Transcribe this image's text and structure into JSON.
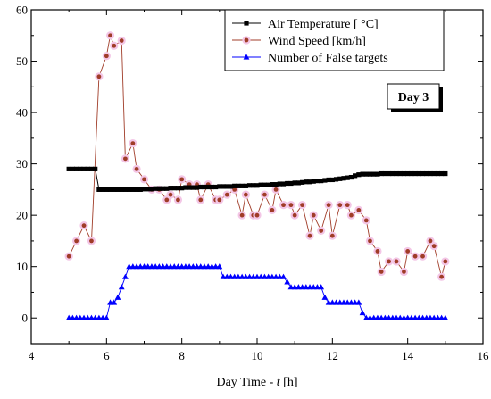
{
  "chart_data": {
    "type": "line",
    "xlabel_main": "Day Time - ",
    "xlabel_var": "t",
    "xlabel_unit": " [h]",
    "xlim": [
      4,
      16
    ],
    "ylim": [
      -5,
      60
    ],
    "x_ticks": [
      "4",
      "6",
      "8",
      "10",
      "12",
      "14",
      "16"
    ],
    "y_ticks": [
      "0",
      "10",
      "20",
      "30",
      "40",
      "50",
      "60"
    ],
    "annotation": "Day 3",
    "legend_position": "top-right",
    "series": [
      {
        "name": "Air Temperature [ °C]",
        "color": "#000000",
        "marker": "square",
        "points": [
          [
            5.0,
            29
          ],
          [
            5.1,
            29
          ],
          [
            5.2,
            29
          ],
          [
            5.3,
            29
          ],
          [
            5.4,
            29
          ],
          [
            5.5,
            29
          ],
          [
            5.6,
            29
          ],
          [
            5.7,
            29
          ],
          [
            5.8,
            25
          ],
          [
            5.9,
            25
          ],
          [
            6.0,
            25
          ],
          [
            6.1,
            25
          ],
          [
            6.2,
            25
          ],
          [
            6.3,
            25
          ],
          [
            6.4,
            25
          ],
          [
            6.5,
            25
          ],
          [
            6.6,
            25
          ],
          [
            6.7,
            25
          ],
          [
            6.8,
            25
          ],
          [
            6.9,
            25
          ],
          [
            7.0,
            25.1
          ],
          [
            7.1,
            25.1
          ],
          [
            7.2,
            25.1
          ],
          [
            7.3,
            25.2
          ],
          [
            7.4,
            25.2
          ],
          [
            7.5,
            25.2
          ],
          [
            7.6,
            25.2
          ],
          [
            7.7,
            25.3
          ],
          [
            7.8,
            25.3
          ],
          [
            7.9,
            25.3
          ],
          [
            8.0,
            25.3
          ],
          [
            8.1,
            25.4
          ],
          [
            8.2,
            25.4
          ],
          [
            8.3,
            25.4
          ],
          [
            8.4,
            25.4
          ],
          [
            8.5,
            25.5
          ],
          [
            8.6,
            25.5
          ],
          [
            8.7,
            25.5
          ],
          [
            8.8,
            25.5
          ],
          [
            8.9,
            25.5
          ],
          [
            9.0,
            25.6
          ],
          [
            9.1,
            25.6
          ],
          [
            9.2,
            25.6
          ],
          [
            9.3,
            25.6
          ],
          [
            9.4,
            25.7
          ],
          [
            9.5,
            25.7
          ],
          [
            9.6,
            25.7
          ],
          [
            9.7,
            25.7
          ],
          [
            9.8,
            25.8
          ],
          [
            9.9,
            25.8
          ],
          [
            10.0,
            25.8
          ],
          [
            10.1,
            25.9
          ],
          [
            10.2,
            25.9
          ],
          [
            10.3,
            25.9
          ],
          [
            10.4,
            26.0
          ],
          [
            10.5,
            26.0
          ],
          [
            10.6,
            26.1
          ],
          [
            10.7,
            26.1
          ],
          [
            10.8,
            26.2
          ],
          [
            10.9,
            26.2
          ],
          [
            11.0,
            26.3
          ],
          [
            11.1,
            26.3
          ],
          [
            11.2,
            26.4
          ],
          [
            11.3,
            26.5
          ],
          [
            11.4,
            26.5
          ],
          [
            11.5,
            26.6
          ],
          [
            11.6,
            26.7
          ],
          [
            11.7,
            26.7
          ],
          [
            11.8,
            26.8
          ],
          [
            11.9,
            26.9
          ],
          [
            12.0,
            26.9
          ],
          [
            12.1,
            27.0
          ],
          [
            12.2,
            27.1
          ],
          [
            12.3,
            27.2
          ],
          [
            12.4,
            27.3
          ],
          [
            12.5,
            27.4
          ],
          [
            12.6,
            27.7
          ],
          [
            12.7,
            27.9
          ],
          [
            12.8,
            28.0
          ],
          [
            12.9,
            28.0
          ],
          [
            13.0,
            28.0
          ],
          [
            13.1,
            28.0
          ],
          [
            13.2,
            28.0
          ],
          [
            13.3,
            28.1
          ],
          [
            13.4,
            28.1
          ],
          [
            13.5,
            28.1
          ],
          [
            13.6,
            28.1
          ],
          [
            13.7,
            28.1
          ],
          [
            13.8,
            28.1
          ],
          [
            13.9,
            28.1
          ],
          [
            14.0,
            28.1
          ],
          [
            14.1,
            28.1
          ],
          [
            14.2,
            28.1
          ],
          [
            14.3,
            28.1
          ],
          [
            14.4,
            28.1
          ],
          [
            14.5,
            28.1
          ],
          [
            14.6,
            28.1
          ],
          [
            14.7,
            28.1
          ],
          [
            14.8,
            28.1
          ],
          [
            14.9,
            28.1
          ],
          [
            15.0,
            28.1
          ]
        ]
      },
      {
        "name": "Wind Speed [km/h]",
        "color": "#a03c28",
        "marker": "circle",
        "points": [
          [
            5.0,
            12
          ],
          [
            5.2,
            15
          ],
          [
            5.4,
            18
          ],
          [
            5.6,
            15
          ],
          [
            5.8,
            47
          ],
          [
            6.0,
            51
          ],
          [
            6.1,
            55
          ],
          [
            6.2,
            53
          ],
          [
            6.4,
            54
          ],
          [
            6.5,
            31
          ],
          [
            6.7,
            34
          ],
          [
            6.8,
            29
          ],
          [
            7.0,
            27
          ],
          [
            7.2,
            25
          ],
          [
            7.4,
            25
          ],
          [
            7.6,
            23
          ],
          [
            7.7,
            24
          ],
          [
            7.9,
            23
          ],
          [
            8.0,
            27
          ],
          [
            8.2,
            26
          ],
          [
            8.4,
            26
          ],
          [
            8.5,
            23
          ],
          [
            8.7,
            26
          ],
          [
            8.9,
            23
          ],
          [
            9.0,
            23
          ],
          [
            9.2,
            24
          ],
          [
            9.4,
            25
          ],
          [
            9.6,
            20
          ],
          [
            9.7,
            24
          ],
          [
            9.9,
            20
          ],
          [
            10.0,
            20
          ],
          [
            10.2,
            24
          ],
          [
            10.4,
            21
          ],
          [
            10.5,
            25
          ],
          [
            10.7,
            22
          ],
          [
            10.9,
            22
          ],
          [
            11.0,
            20
          ],
          [
            11.2,
            22
          ],
          [
            11.4,
            16
          ],
          [
            11.5,
            20
          ],
          [
            11.7,
            17
          ],
          [
            11.9,
            22
          ],
          [
            12.0,
            16
          ],
          [
            12.2,
            22
          ],
          [
            12.4,
            22
          ],
          [
            12.5,
            20
          ],
          [
            12.7,
            21
          ],
          [
            12.9,
            19
          ],
          [
            13.0,
            15
          ],
          [
            13.2,
            13
          ],
          [
            13.3,
            9
          ],
          [
            13.5,
            11
          ],
          [
            13.7,
            11
          ],
          [
            13.9,
            9
          ],
          [
            14.0,
            13
          ],
          [
            14.2,
            12
          ],
          [
            14.4,
            12
          ],
          [
            14.6,
            15
          ],
          [
            14.7,
            14
          ],
          [
            14.9,
            8
          ],
          [
            15.0,
            11
          ]
        ]
      },
      {
        "name": "Number of False targets",
        "color": "#0000ff",
        "marker": "triangle",
        "points": [
          [
            5.0,
            0
          ],
          [
            5.1,
            0
          ],
          [
            5.2,
            0
          ],
          [
            5.3,
            0
          ],
          [
            5.4,
            0
          ],
          [
            5.5,
            0
          ],
          [
            5.6,
            0
          ],
          [
            5.7,
            0
          ],
          [
            5.8,
            0
          ],
          [
            5.9,
            0
          ],
          [
            6.0,
            0
          ],
          [
            6.1,
            3
          ],
          [
            6.2,
            3
          ],
          [
            6.3,
            4
          ],
          [
            6.4,
            6
          ],
          [
            6.5,
            8
          ],
          [
            6.6,
            10
          ],
          [
            6.7,
            10
          ],
          [
            6.8,
            10
          ],
          [
            6.9,
            10
          ],
          [
            7.0,
            10
          ],
          [
            7.1,
            10
          ],
          [
            7.2,
            10
          ],
          [
            7.3,
            10
          ],
          [
            7.4,
            10
          ],
          [
            7.5,
            10
          ],
          [
            7.6,
            10
          ],
          [
            7.7,
            10
          ],
          [
            7.8,
            10
          ],
          [
            7.9,
            10
          ],
          [
            8.0,
            10
          ],
          [
            8.1,
            10
          ],
          [
            8.2,
            10
          ],
          [
            8.3,
            10
          ],
          [
            8.4,
            10
          ],
          [
            8.5,
            10
          ],
          [
            8.6,
            10
          ],
          [
            8.7,
            10
          ],
          [
            8.8,
            10
          ],
          [
            8.9,
            10
          ],
          [
            9.0,
            10
          ],
          [
            9.1,
            8
          ],
          [
            9.2,
            8
          ],
          [
            9.3,
            8
          ],
          [
            9.4,
            8
          ],
          [
            9.5,
            8
          ],
          [
            9.6,
            8
          ],
          [
            9.7,
            8
          ],
          [
            9.8,
            8
          ],
          [
            9.9,
            8
          ],
          [
            10.0,
            8
          ],
          [
            10.1,
            8
          ],
          [
            10.2,
            8
          ],
          [
            10.3,
            8
          ],
          [
            10.4,
            8
          ],
          [
            10.5,
            8
          ],
          [
            10.6,
            8
          ],
          [
            10.7,
            8
          ],
          [
            10.8,
            7
          ],
          [
            10.9,
            6
          ],
          [
            11.0,
            6
          ],
          [
            11.1,
            6
          ],
          [
            11.2,
            6
          ],
          [
            11.3,
            6
          ],
          [
            11.4,
            6
          ],
          [
            11.5,
            6
          ],
          [
            11.6,
            6
          ],
          [
            11.7,
            6
          ],
          [
            11.8,
            4
          ],
          [
            11.9,
            3
          ],
          [
            12.0,
            3
          ],
          [
            12.1,
            3
          ],
          [
            12.2,
            3
          ],
          [
            12.3,
            3
          ],
          [
            12.4,
            3
          ],
          [
            12.5,
            3
          ],
          [
            12.6,
            3
          ],
          [
            12.7,
            3
          ],
          [
            12.8,
            1
          ],
          [
            12.9,
            0
          ],
          [
            13.0,
            0
          ],
          [
            13.1,
            0
          ],
          [
            13.2,
            0
          ],
          [
            13.3,
            0
          ],
          [
            13.4,
            0
          ],
          [
            13.5,
            0
          ],
          [
            13.6,
            0
          ],
          [
            13.7,
            0
          ],
          [
            13.8,
            0
          ],
          [
            13.9,
            0
          ],
          [
            14.0,
            0
          ],
          [
            14.1,
            0
          ],
          [
            14.2,
            0
          ],
          [
            14.3,
            0
          ],
          [
            14.4,
            0
          ],
          [
            14.5,
            0
          ],
          [
            14.6,
            0
          ],
          [
            14.7,
            0
          ],
          [
            14.8,
            0
          ],
          [
            14.9,
            0
          ],
          [
            15.0,
            0
          ]
        ]
      }
    ]
  }
}
